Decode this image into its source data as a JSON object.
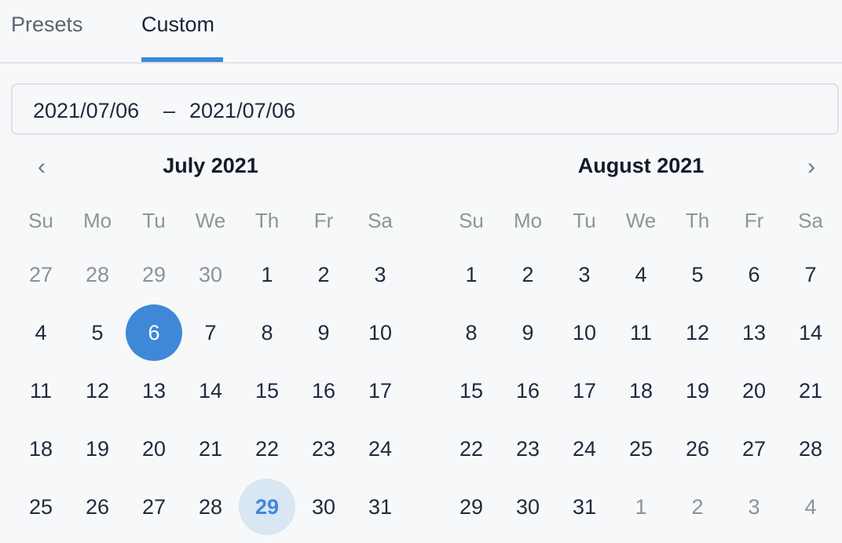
{
  "tabs": {
    "presets": "Presets",
    "custom": "Custom",
    "active": "custom"
  },
  "range": {
    "start": "2021/07/06",
    "separator": "–",
    "end": "2021/07/06"
  },
  "nav": {
    "prev_icon": "chevron-left-icon",
    "next_icon": "chevron-right-icon"
  },
  "colors": {
    "accent": "#3f88d8",
    "today_bg": "#d9e6f3"
  },
  "weekdays": [
    "Su",
    "Mo",
    "Tu",
    "We",
    "Th",
    "Fr",
    "Sa"
  ],
  "months": [
    {
      "title": "July 2021",
      "weeks": [
        [
          {
            "d": "27",
            "out": true
          },
          {
            "d": "28",
            "out": true
          },
          {
            "d": "29",
            "out": true
          },
          {
            "d": "30",
            "out": true
          },
          {
            "d": "1"
          },
          {
            "d": "2"
          },
          {
            "d": "3"
          }
        ],
        [
          {
            "d": "4"
          },
          {
            "d": "5"
          },
          {
            "d": "6",
            "selected": true
          },
          {
            "d": "7"
          },
          {
            "d": "8"
          },
          {
            "d": "9"
          },
          {
            "d": "10"
          }
        ],
        [
          {
            "d": "11"
          },
          {
            "d": "12"
          },
          {
            "d": "13"
          },
          {
            "d": "14"
          },
          {
            "d": "15"
          },
          {
            "d": "16"
          },
          {
            "d": "17"
          }
        ],
        [
          {
            "d": "18"
          },
          {
            "d": "19"
          },
          {
            "d": "20"
          },
          {
            "d": "21"
          },
          {
            "d": "22"
          },
          {
            "d": "23"
          },
          {
            "d": "24"
          }
        ],
        [
          {
            "d": "25"
          },
          {
            "d": "26"
          },
          {
            "d": "27"
          },
          {
            "d": "28"
          },
          {
            "d": "29",
            "today": true
          },
          {
            "d": "30"
          },
          {
            "d": "31"
          }
        ]
      ]
    },
    {
      "title": "August 2021",
      "weeks": [
        [
          {
            "d": "1"
          },
          {
            "d": "2"
          },
          {
            "d": "3"
          },
          {
            "d": "4"
          },
          {
            "d": "5"
          },
          {
            "d": "6"
          },
          {
            "d": "7"
          }
        ],
        [
          {
            "d": "8"
          },
          {
            "d": "9"
          },
          {
            "d": "10"
          },
          {
            "d": "11"
          },
          {
            "d": "12"
          },
          {
            "d": "13"
          },
          {
            "d": "14"
          }
        ],
        [
          {
            "d": "15"
          },
          {
            "d": "16"
          },
          {
            "d": "17"
          },
          {
            "d": "18"
          },
          {
            "d": "19"
          },
          {
            "d": "20"
          },
          {
            "d": "21"
          }
        ],
        [
          {
            "d": "22"
          },
          {
            "d": "23"
          },
          {
            "d": "24"
          },
          {
            "d": "25"
          },
          {
            "d": "26"
          },
          {
            "d": "27"
          },
          {
            "d": "28"
          }
        ],
        [
          {
            "d": "29"
          },
          {
            "d": "30"
          },
          {
            "d": "31"
          },
          {
            "d": "1",
            "out": true
          },
          {
            "d": "2",
            "out": true
          },
          {
            "d": "3",
            "out": true
          },
          {
            "d": "4",
            "out": true
          }
        ]
      ]
    }
  ]
}
